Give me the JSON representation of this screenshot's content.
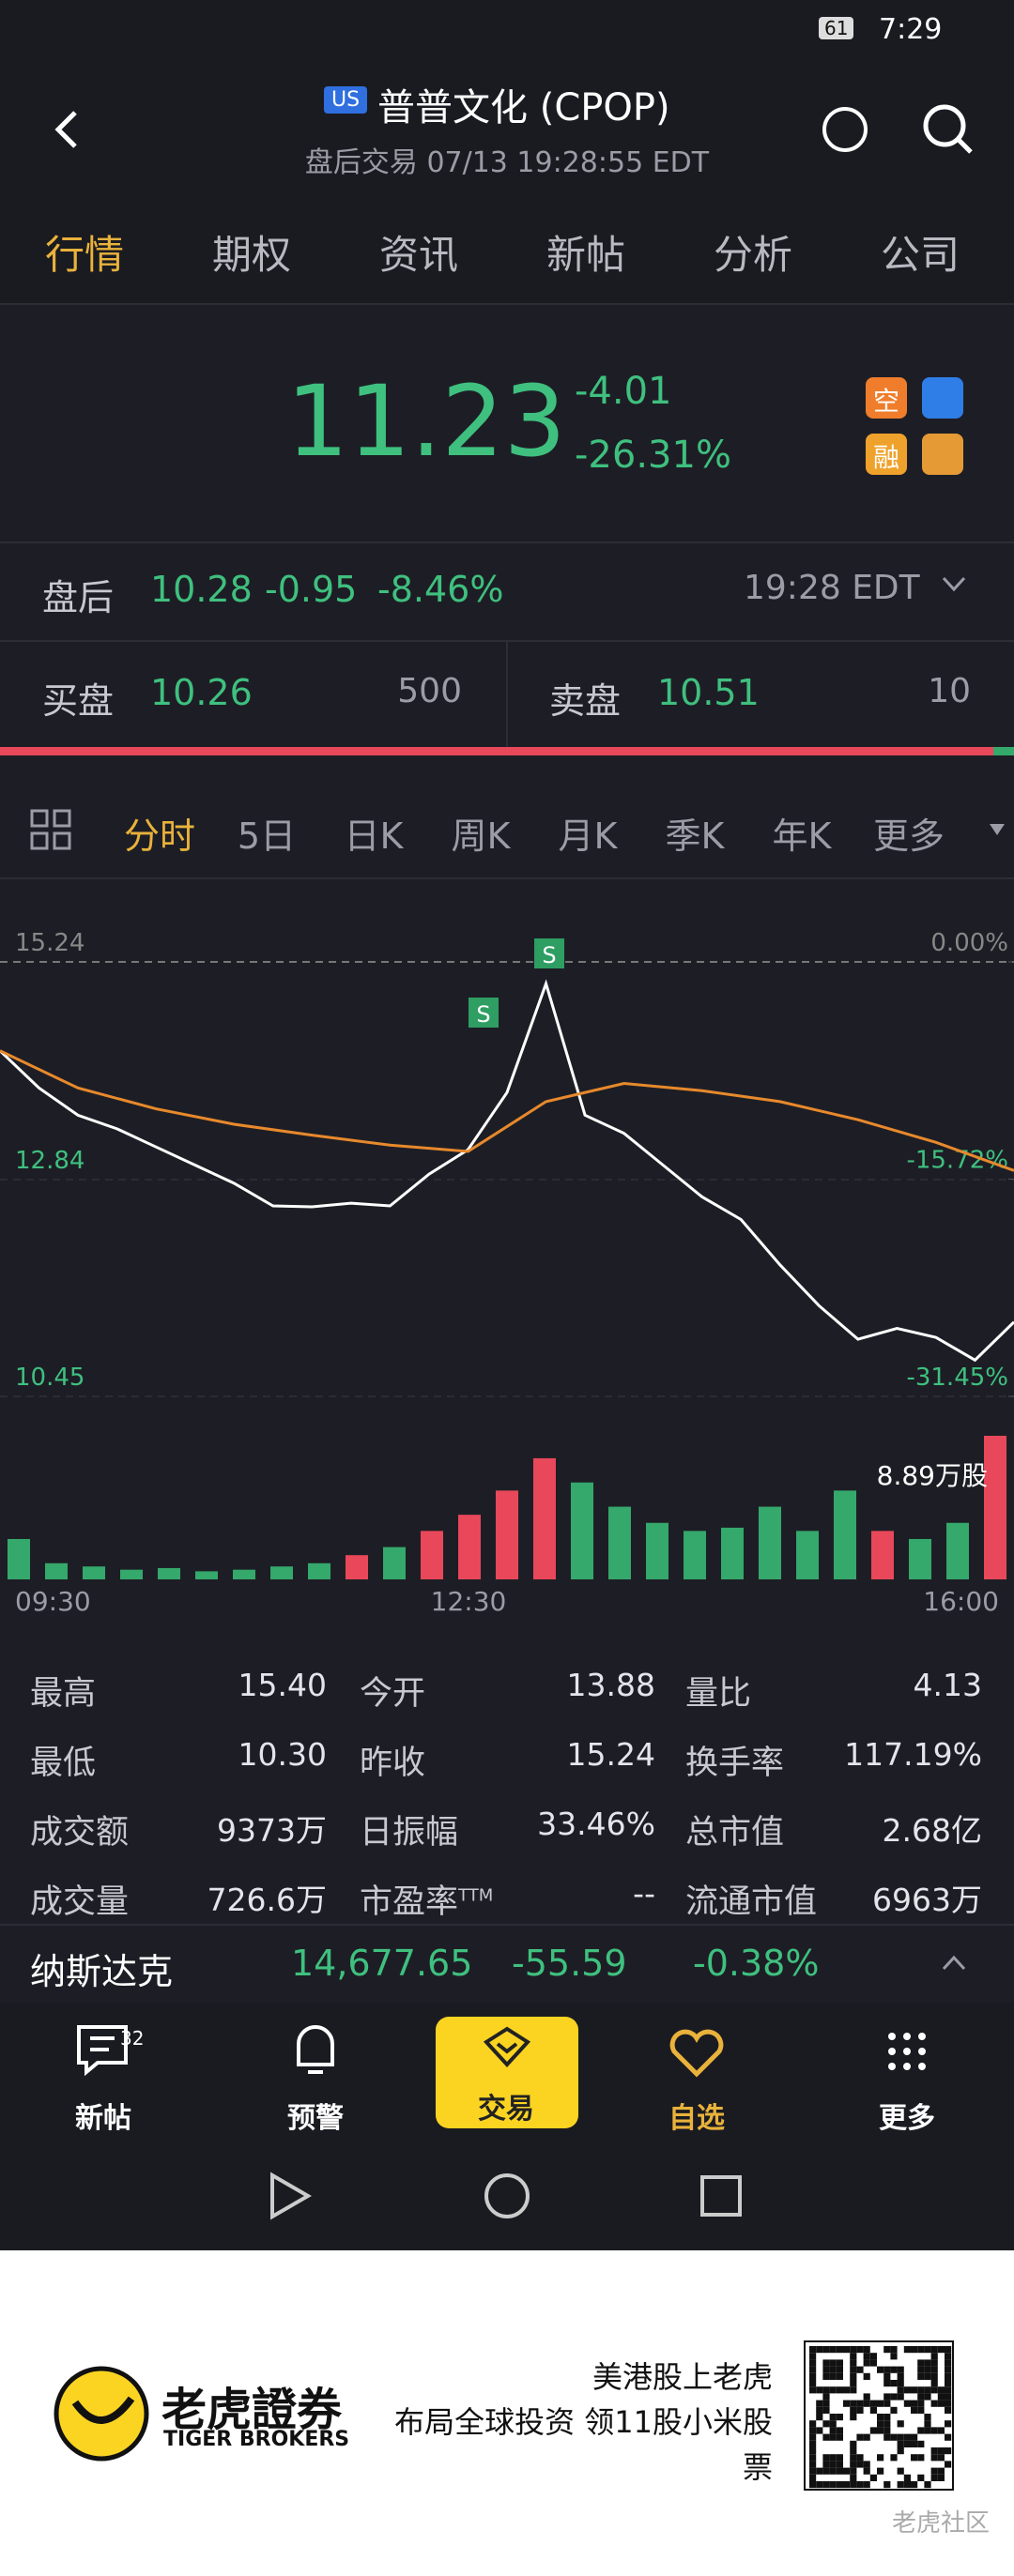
{
  "status_bar": {
    "time": "7:29",
    "battery": "61"
  },
  "header": {
    "badge": "US",
    "title": "普普文化 (CPOP)",
    "subtitle": "盘后交易 07/13 19:28:55 EDT"
  },
  "tabs": [
    "行情",
    "期权",
    "资讯",
    "新帖",
    "分析",
    "公司"
  ],
  "active_tab": 0,
  "quote": {
    "price": "11.23",
    "change": "-4.01",
    "change_pct": "-26.31%",
    "badges": [
      "空",
      "融"
    ]
  },
  "after_hours": {
    "label": "盘后",
    "price": "10.28",
    "change": "-0.95",
    "change_pct": "-8.46%",
    "time": "19:28 EDT"
  },
  "bid": {
    "label": "买盘",
    "price": "10.26",
    "size": "500"
  },
  "ask": {
    "label": "卖盘",
    "price": "10.51",
    "size": "10"
  },
  "periods": [
    "分时",
    "5日",
    "日K",
    "周K",
    "月K",
    "季K",
    "年K",
    "更多"
  ],
  "active_period": 0,
  "chart_data": {
    "type": "line",
    "series": [
      {
        "name": "价格",
        "color": "#ffffff",
        "values": [
          14.26,
          13.85,
          13.55,
          13.4,
          13.2,
          13.0,
          12.8,
          12.55,
          12.54,
          12.58,
          12.55,
          12.9,
          13.17,
          13.8,
          15.0,
          13.55,
          13.35,
          13.0,
          12.65,
          12.4,
          11.9,
          11.45,
          11.08,
          11.2,
          11.1,
          10.85,
          11.27
        ]
      },
      {
        "name": "均价",
        "color": "#e8892c",
        "values": [
          14.26,
          13.85,
          13.62,
          13.45,
          13.33,
          13.22,
          13.15,
          13.7,
          13.9,
          13.82,
          13.7,
          13.5,
          13.25,
          12.94
        ]
      }
    ],
    "ylim": [
      10.45,
      15.24
    ],
    "yticks": [
      15.24,
      12.84,
      10.45
    ],
    "y2lim": [
      -31.45,
      0
    ],
    "y2ticks": [
      {
        "value": 0,
        "label": "0.00%"
      },
      {
        "value": -15.72,
        "label": "-15.72%"
      },
      {
        "value": -31.45,
        "label": "-31.45%"
      }
    ],
    "xticks": [
      "09:30",
      "12:30",
      "16:00"
    ],
    "volume": {
      "values": [
        2.5,
        1.0,
        0.8,
        0.6,
        0.7,
        0.5,
        0.6,
        0.8,
        1.0,
        1.5,
        2.0,
        3.0,
        4.0,
        5.5,
        7.5,
        6.0,
        4.5,
        3.5,
        3.0,
        3.2,
        4.5,
        3.0,
        5.5,
        3.0,
        2.5,
        3.5,
        8.89
      ],
      "ylim": [
        0,
        8.89
      ],
      "label": "8.89万股",
      "up_color": "#e8485a",
      "down_color": "#35a86c"
    }
  },
  "stats": [
    [
      {
        "label": "最高",
        "value": "15.40"
      },
      {
        "label": "今开",
        "value": "13.88"
      },
      {
        "label": "量比",
        "value": "4.13"
      }
    ],
    [
      {
        "label": "最低",
        "value": "10.30"
      },
      {
        "label": "昨收",
        "value": "15.24"
      },
      {
        "label": "换手率",
        "value": "117.19%"
      }
    ],
    [
      {
        "label": "成交额",
        "value": "9373万"
      },
      {
        "label": "日振幅",
        "value": "33.46%"
      },
      {
        "label": "总市值",
        "value": "2.68亿"
      }
    ],
    [
      {
        "label": "成交量",
        "value": "726.6万"
      },
      {
        "label": "市盈率",
        "sup": "TTM",
        "value": "--"
      },
      {
        "label": "流通市值",
        "value": "6963万"
      }
    ]
  ],
  "index": {
    "name": "纳斯达克",
    "value": "14,677.65",
    "change": "-55.59",
    "change_pct": "-0.38%"
  },
  "nav": [
    {
      "label": "新帖",
      "badge": "32"
    },
    {
      "label": "预警"
    },
    {
      "label": "交易"
    },
    {
      "label": "自选"
    },
    {
      "label": "更多"
    }
  ],
  "active_nav": 3,
  "ad": {
    "brand": "老虎證券",
    "brand_en": "TIGER BROKERS",
    "line1": "美港股上老虎",
    "line2": "布局全球投资 领11股小米股",
    "line3": "票",
    "watermark": "老虎社区"
  }
}
